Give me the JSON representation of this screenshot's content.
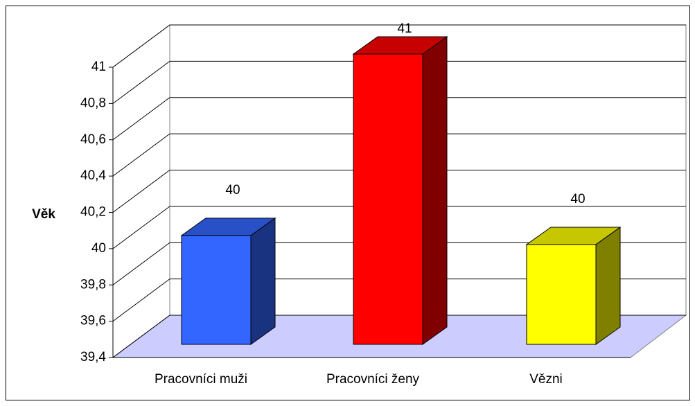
{
  "chart_data": {
    "type": "bar3d",
    "ylabel": "Věk",
    "categories": [
      "Pracovníci muži",
      "Pracovníci ženy",
      "Vězni"
    ],
    "values": [
      40,
      41,
      39.95
    ],
    "value_labels": [
      "40",
      "41",
      "40"
    ],
    "colors": [
      "#3366ff",
      "#ff0000",
      "#ffff00"
    ],
    "ylim": [
      39.4,
      41
    ],
    "yticks": [
      {
        "value": 39.4,
        "label": "39,4"
      },
      {
        "value": 39.6,
        "label": "39,6"
      },
      {
        "value": 39.8,
        "label": "39,8"
      },
      40,
      {
        "value": 40.2,
        "label": "40,2"
      },
      {
        "value": 40.4,
        "label": "40,4"
      },
      {
        "value": 40.6,
        "label": "40,6"
      },
      {
        "value": 40.8,
        "label": "40,8"
      },
      41
    ],
    "grid": true
  }
}
